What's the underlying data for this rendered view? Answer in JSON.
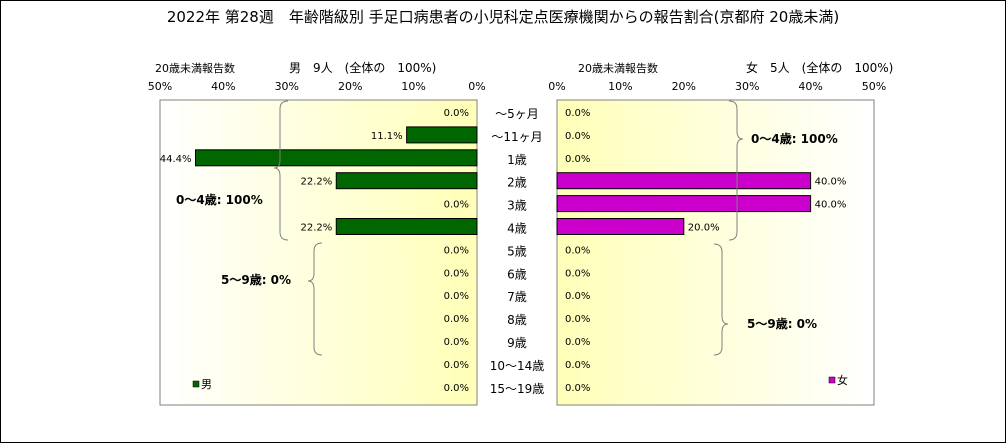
{
  "title": "2022年 第28週　年齢階級別 手足口病患者の小児科定点医療機関からの報告割合(京都府 20歳未満)",
  "age_groups": [
    "～5ヶ月",
    "～11ヶ月",
    "1歳",
    "2歳",
    "3歳",
    "4歳",
    "5歳",
    "6歳",
    "7歳",
    "8歳",
    "9歳",
    "10～14歳",
    "15～19歳"
  ],
  "male": {
    "axis_caption": "20歳未満報告数",
    "header": "男　9人　(全体の　100%)",
    "legend": "男",
    "color": "#006600",
    "percent_labels": [
      "0.0%",
      "11.1%",
      "44.4%",
      "22.2%",
      "0.0%",
      "22.2%",
      "0.0%",
      "0.0%",
      "0.0%",
      "0.0%",
      "0.0%",
      "0.0%",
      "0.0%"
    ],
    "bracket_0_4": "0～4歳: 100%",
    "bracket_5_9": "5～9歳: 0%"
  },
  "female": {
    "axis_caption": "20歳未満報告数",
    "header": "女　5人　(全体の　100%)",
    "legend": "女",
    "color": "#cc00cc",
    "percent_labels": [
      "0.0%",
      "0.0%",
      "0.0%",
      "40.0%",
      "40.0%",
      "20.0%",
      "0.0%",
      "0.0%",
      "0.0%",
      "0.0%",
      "0.0%",
      "0.0%",
      "0.0%"
    ],
    "bracket_0_4": "0～4歳: 100%",
    "bracket_5_9": "5～9歳: 0%"
  },
  "chart_data": {
    "type": "bar",
    "title": "2022年 第28週　年齢階級別 手足口病患者の小児科定点医療機関からの報告割合(京都府 20歳未満)",
    "categories": [
      "～5ヶ月",
      "～11ヶ月",
      "1歳",
      "2歳",
      "3歳",
      "4歳",
      "5歳",
      "6歳",
      "7歳",
      "8歳",
      "9歳",
      "10～14歳",
      "15～19歳"
    ],
    "series": [
      {
        "name": "男",
        "values": [
          0.0,
          11.1,
          44.4,
          22.2,
          0.0,
          22.2,
          0.0,
          0.0,
          0.0,
          0.0,
          0.0,
          0.0,
          0.0
        ]
      },
      {
        "name": "女",
        "values": [
          0.0,
          0.0,
          0.0,
          40.0,
          40.0,
          20.0,
          0.0,
          0.0,
          0.0,
          0.0,
          0.0,
          0.0,
          0.0
        ]
      }
    ],
    "male_xlim": [
      50,
      0
    ],
    "female_xlim": [
      0,
      50
    ],
    "ticks": [
      0,
      10,
      20,
      30,
      40,
      50
    ],
    "tick_labels": [
      "0%",
      "10%",
      "20%",
      "30%",
      "40%",
      "50%"
    ],
    "orientation": "horizontal",
    "grid": false,
    "legend_position": "bottom-left / bottom-right"
  }
}
